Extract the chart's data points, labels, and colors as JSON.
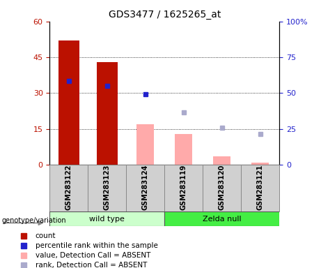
{
  "title": "GDS3477 / 1625265_at",
  "samples": [
    "GSM283122",
    "GSM283123",
    "GSM283124",
    "GSM283119",
    "GSM283120",
    "GSM283121"
  ],
  "red_bars": [
    52,
    43,
    null,
    null,
    null,
    null
  ],
  "blue_markers": [
    35,
    33,
    29.5,
    null,
    null,
    null
  ],
  "pink_bars": [
    null,
    null,
    17,
    13,
    3.5,
    1.0
  ],
  "lavender_markers": [
    null,
    null,
    null,
    22,
    15.5,
    13
  ],
  "left_ylim": [
    0,
    60
  ],
  "left_yticks": [
    0,
    15,
    30,
    45,
    60
  ],
  "right_ylim": [
    0,
    100
  ],
  "right_yticks": [
    0,
    25,
    50,
    75,
    100
  ],
  "red_color": "#BB1100",
  "blue_color": "#2222CC",
  "pink_color": "#FFAAAA",
  "lavender_color": "#AAAACC",
  "wt_color": "#CCFFCC",
  "zn_color": "#44EE44",
  "legend_labels": [
    "count",
    "percentile rank within the sample",
    "value, Detection Call = ABSENT",
    "rank, Detection Call = ABSENT"
  ],
  "legend_colors": [
    "#BB1100",
    "#2222CC",
    "#FFAAAA",
    "#AAAACC"
  ]
}
